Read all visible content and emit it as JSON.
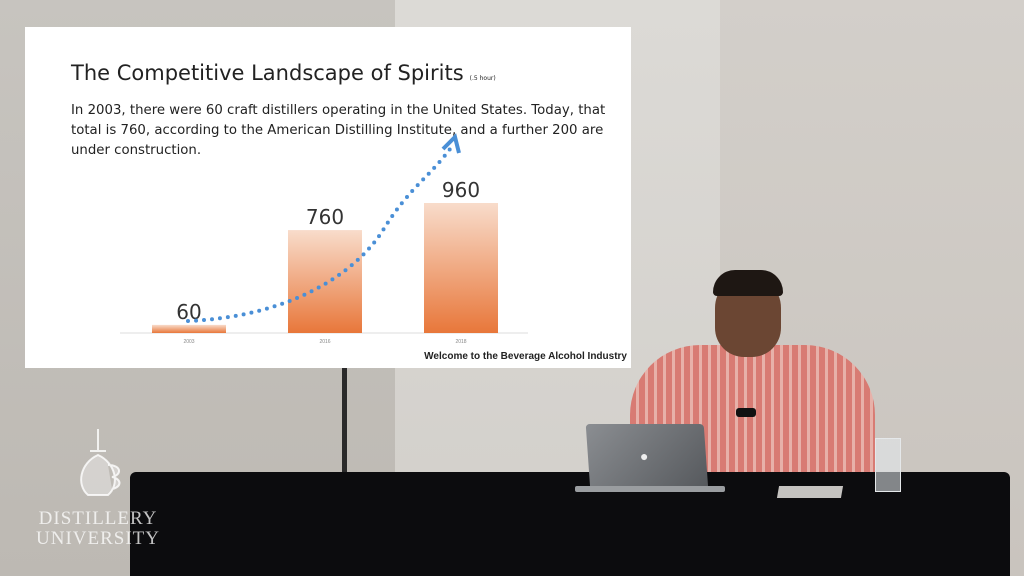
{
  "slide": {
    "title": "The Competitive Landscape of Spirits",
    "title_note": "(.5 hour)",
    "body": "In 2003, there were 60 craft distillers operating in the United States. Today, that total is 760, according to the American Distilling Institute, and a further 200 are under construction.",
    "footer": "Welcome to the Beverage Alcohol Industry"
  },
  "chart_data": {
    "type": "bar",
    "categories": [
      "2003",
      "2016",
      "2018"
    ],
    "values": [
      60,
      760,
      960
    ],
    "data_labels": [
      "60",
      "760",
      "960"
    ],
    "bar_color": "#e8773a",
    "trend_arrow_color": "#4a8fd6",
    "ylim": [
      0,
      960
    ],
    "grid": false
  },
  "watermark": {
    "line1": "DISTILLERY",
    "line2": "UNIVERSITY"
  }
}
